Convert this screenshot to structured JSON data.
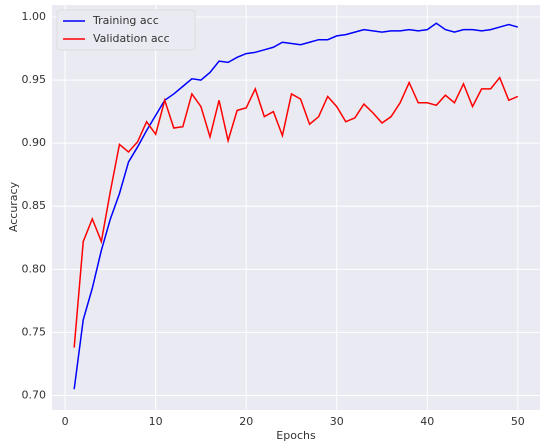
{
  "chart_data": {
    "type": "line",
    "xlabel": "Epochs",
    "ylabel": "Accuracy",
    "x": [
      1,
      2,
      3,
      4,
      5,
      6,
      7,
      8,
      9,
      10,
      11,
      12,
      13,
      14,
      15,
      16,
      17,
      18,
      19,
      20,
      21,
      22,
      23,
      24,
      25,
      26,
      27,
      28,
      29,
      30,
      31,
      32,
      33,
      34,
      35,
      36,
      37,
      38,
      39,
      40,
      41,
      42,
      43,
      44,
      45,
      46,
      47,
      48,
      49,
      50
    ],
    "series": [
      {
        "name": "Training acc",
        "color": "#0000ff",
        "values": [
          0.705,
          0.76,
          0.785,
          0.815,
          0.84,
          0.86,
          0.885,
          0.897,
          0.91,
          0.922,
          0.934,
          0.939,
          0.945,
          0.951,
          0.95,
          0.956,
          0.965,
          0.964,
          0.968,
          0.971,
          0.972,
          0.974,
          0.976,
          0.98,
          0.979,
          0.978,
          0.98,
          0.982,
          0.982,
          0.985,
          0.986,
          0.988,
          0.99,
          0.989,
          0.988,
          0.989,
          0.989,
          0.99,
          0.989,
          0.99,
          0.995,
          0.99,
          0.988,
          0.99,
          0.99,
          0.989,
          0.99,
          0.992,
          0.994,
          0.992
        ]
      },
      {
        "name": "Validation acc",
        "color": "#ff0000",
        "values": [
          0.738,
          0.822,
          0.84,
          0.822,
          0.862,
          0.899,
          0.893,
          0.901,
          0.917,
          0.907,
          0.934,
          0.912,
          0.913,
          0.939,
          0.929,
          0.905,
          0.934,
          0.902,
          0.926,
          0.928,
          0.943,
          0.921,
          0.925,
          0.906,
          0.939,
          0.935,
          0.915,
          0.921,
          0.937,
          0.929,
          0.917,
          0.92,
          0.931,
          0.924,
          0.916,
          0.921,
          0.932,
          0.948,
          0.932,
          0.932,
          0.93,
          0.938,
          0.932,
          0.947,
          0.929,
          0.943,
          0.943,
          0.952,
          0.934,
          0.937
        ]
      }
    ],
    "xlim": [
      -1.45,
      52.45
    ],
    "xticks": [
      0,
      10,
      20,
      30,
      40,
      50
    ],
    "ylim": [
      0.6885,
      1.0095
    ],
    "yticks": [
      {
        "value": 0.7,
        "label": "0.70"
      },
      {
        "value": 0.75,
        "label": "0.75"
      },
      {
        "value": 0.8,
        "label": "0.80"
      },
      {
        "value": 0.85,
        "label": "0.85"
      },
      {
        "value": 0.9,
        "label": "0.90"
      },
      {
        "value": 0.95,
        "label": "0.95"
      },
      {
        "value": 1.0,
        "label": "1.00"
      }
    ],
    "grid": true,
    "legend": "upper-left"
  }
}
